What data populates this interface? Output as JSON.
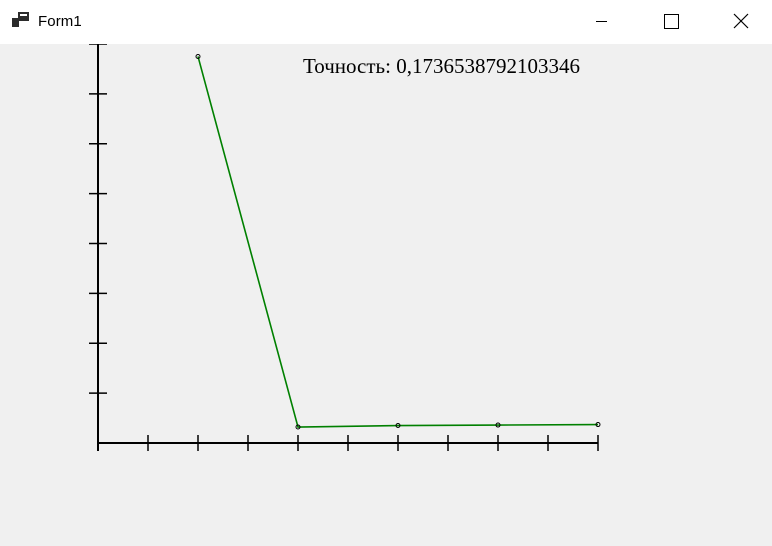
{
  "window": {
    "title": "Form1",
    "icons": {
      "app": "app-icon",
      "minimize": "minimize-icon",
      "maximize": "maximize-icon",
      "close": "close-icon"
    }
  },
  "accuracy": {
    "label": "Точность:",
    "value": "0,1736538792103346"
  },
  "colors": {
    "line": "#008000",
    "axis": "#000000",
    "background": "#f0f0f0"
  },
  "chart_data": {
    "type": "line",
    "title": "",
    "xlabel": "",
    "ylabel": "",
    "x_ticks": 10,
    "y_ticks": 8,
    "xlim": [
      0,
      10
    ],
    "ylim": [
      0,
      8
    ],
    "grid": false,
    "series": [
      {
        "x": [
          2,
          4,
          6,
          8,
          10
        ],
        "y": [
          7.75,
          0.32,
          0.35,
          0.36,
          0.37
        ]
      }
    ]
  }
}
